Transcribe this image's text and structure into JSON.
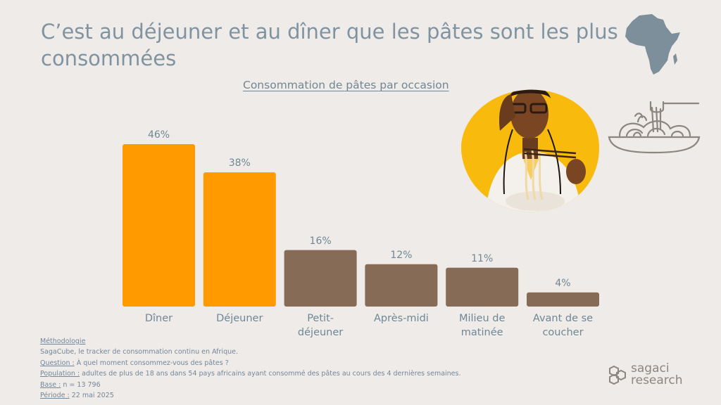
{
  "title": "C’est au déjeuner et au dîner que les pâtes sont les plus consommées",
  "subtitle": "Consommation de pâtes par occasion",
  "colors": {
    "highlight": "#ff9a00",
    "neutral": "#866b57",
    "text": "#6f8795",
    "background": "#efebe8"
  },
  "chart_data": {
    "type": "bar",
    "title": "Consommation de pâtes par occasion",
    "categories": [
      "Dîner",
      "Déjeuner",
      "Petit-déjeuner",
      "Après-midi",
      "Milieu de matinée",
      "Avant de se coucher"
    ],
    "category_lines": [
      [
        "Dîner"
      ],
      [
        "Déjeuner"
      ],
      [
        "Petit-",
        "déjeuner"
      ],
      [
        "Après-midi"
      ],
      [
        "Milieu de",
        "matinée"
      ],
      [
        "Avant de se",
        "coucher"
      ]
    ],
    "values": [
      46,
      38,
      16,
      12,
      11,
      4
    ],
    "value_labels": [
      "46%",
      "38%",
      "16%",
      "12%",
      "11%",
      "4%"
    ],
    "highlighted": [
      true,
      true,
      false,
      false,
      false,
      false
    ],
    "ylim": [
      0,
      46
    ],
    "unit": "%",
    "xlabel": "",
    "ylabel": ""
  },
  "methodology": {
    "heading": "Méthodologie",
    "description": "SagaCube, le tracker de consommation continu en Afrique.",
    "question_label": "Question :",
    "question_text": " À quel moment consommez-vous des pâtes ?",
    "population_label": "Population :",
    "population_text": " adultes de plus de 18 ans dans 54 pays africains ayant consommé des pâtes au cours des 4 dernières semaines.",
    "base_label": "Base :",
    "base_text": " n = 13 796",
    "period_label": "Période :",
    "period_text": " 22 mai 2025"
  },
  "logo": {
    "line1": "sagaci",
    "line2": "research"
  },
  "icons": [
    "africa-map-icon",
    "pasta-bowl-icon",
    "sagaci-logo-icon"
  ]
}
